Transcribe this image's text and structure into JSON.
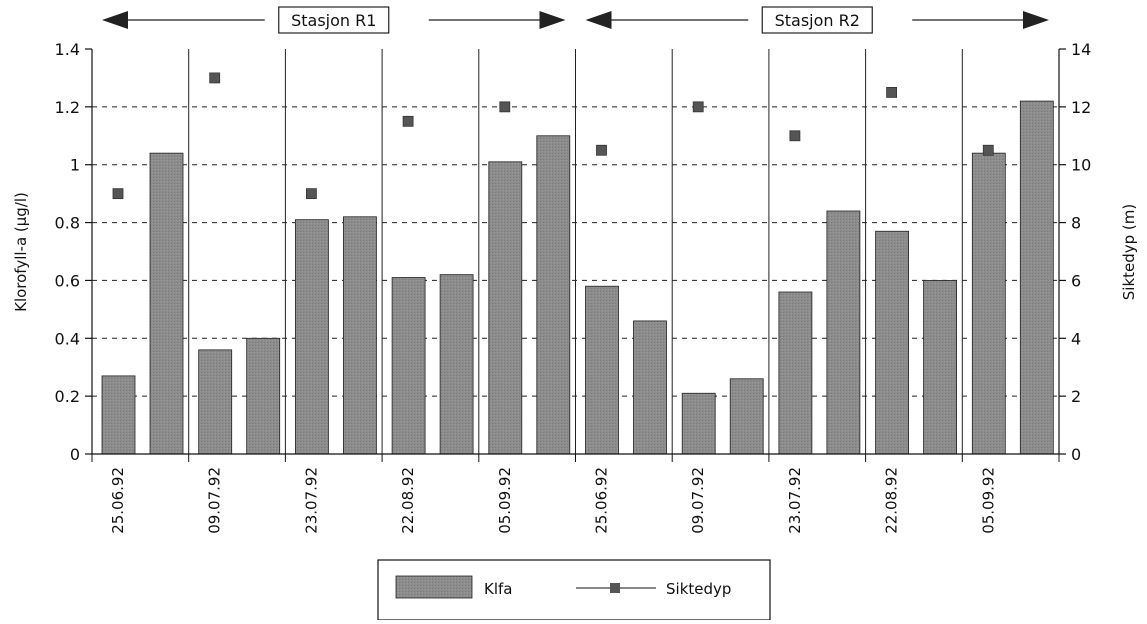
{
  "chart_data": {
    "type": "bar",
    "categories": [
      "25.06.92",
      "09.07.92",
      "23.07.92",
      "22.08.92",
      "05.09.92",
      "25.06.92",
      "09.07.92",
      "23.07.92",
      "22.08.92",
      "05.09.92"
    ],
    "stations": [
      {
        "label": "Stasjon R1",
        "categories": [
          "25.06.92",
          "09.07.92",
          "23.07.92",
          "22.08.92",
          "05.09.92"
        ]
      },
      {
        "label": "Stasjon R2",
        "categories": [
          "25.06.92",
          "09.07.92",
          "23.07.92",
          "22.08.92",
          "05.09.92"
        ]
      }
    ],
    "series": [
      {
        "name": "Klfa",
        "type": "bar",
        "axis": "left",
        "values": [
          [
            0.27,
            1.04
          ],
          [
            0.36,
            0.4
          ],
          [
            0.81,
            0.82
          ],
          [
            0.61,
            0.62
          ],
          [
            1.01,
            1.1
          ],
          [
            0.58,
            0.46
          ],
          [
            0.21,
            0.26
          ],
          [
            0.56,
            0.84
          ],
          [
            0.77,
            0.6
          ],
          [
            1.04,
            1.22
          ]
        ]
      },
      {
        "name": "Siktedyp",
        "type": "marker",
        "axis": "right",
        "values": [
          9.0,
          13.0,
          9.0,
          11.5,
          12.0,
          10.5,
          12.0,
          11.0,
          12.5,
          10.5
        ]
      }
    ],
    "ylabel_left": "Klorofyll-a (µg/l)",
    "ylabel_right": "Siktedyp (m)",
    "ylim_left": [
      0,
      1.4
    ],
    "ylim_right": [
      0,
      14
    ],
    "yticks_left": [
      "0",
      "0.2",
      "0.4",
      "0.6",
      "0.8",
      "1",
      "1.2",
      "1.4"
    ],
    "yticks_right": [
      "0",
      "2",
      "4",
      "6",
      "8",
      "10",
      "12",
      "14"
    ],
    "grid": "dashed horizontal",
    "legend_position": "bottom",
    "colors": {
      "bar": "#8c8c8c",
      "marker": "#555555",
      "axis": "#111111"
    }
  }
}
